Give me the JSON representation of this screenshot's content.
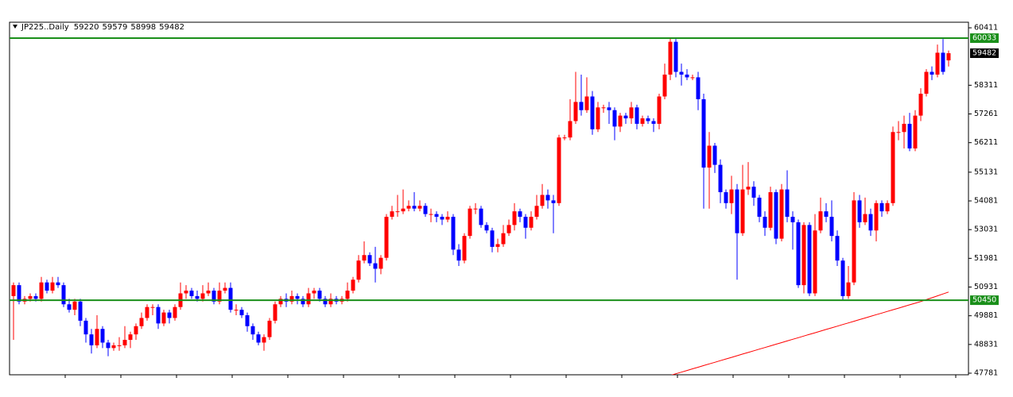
{
  "chart_data": {
    "type": "candlestick",
    "title": "JP225..Daily",
    "ylim": [
      47723,
      60615
    ],
    "yticks": [
      60411,
      58311,
      57261,
      56211,
      55131,
      54081,
      53031,
      51981,
      50931,
      49881,
      48831,
      47781
    ],
    "up_color": "#ff0000",
    "down_color": "#0000ff",
    "ohlc": [
      [
        50600,
        51100,
        49000,
        51000
      ],
      [
        51000,
        51100,
        50300,
        50400
      ],
      [
        50400,
        50600,
        50300,
        50500
      ],
      [
        50500,
        50700,
        50400,
        50600
      ],
      [
        50600,
        50700,
        50400,
        50500
      ],
      [
        50500,
        51300,
        50400,
        51100
      ],
      [
        51100,
        51200,
        50700,
        50800
      ],
      [
        50800,
        51300,
        50700,
        51100
      ],
      [
        51100,
        51300,
        50900,
        51000
      ],
      [
        51000,
        51100,
        50200,
        50300
      ],
      [
        50300,
        50500,
        50000,
        50100
      ],
      [
        50100,
        50500,
        49900,
        50400
      ],
      [
        50400,
        50500,
        49500,
        49700
      ],
      [
        49700,
        49800,
        48900,
        49200
      ],
      [
        49200,
        49400,
        48500,
        48800
      ],
      [
        48800,
        49900,
        48700,
        49400
      ],
      [
        49400,
        49500,
        48700,
        48900
      ],
      [
        48900,
        49000,
        48400,
        48700
      ],
      [
        48700,
        48900,
        48600,
        48800
      ],
      [
        48800,
        49100,
        48600,
        48800
      ],
      [
        48800,
        49500,
        48700,
        49000
      ],
      [
        49000,
        49300,
        48700,
        49200
      ],
      [
        49200,
        49600,
        49000,
        49500
      ],
      [
        49500,
        50000,
        49400,
        49800
      ],
      [
        49800,
        50300,
        49700,
        50200
      ],
      [
        50200,
        50300,
        49900,
        50200
      ],
      [
        50200,
        50300,
        49400,
        49600
      ],
      [
        49600,
        50100,
        49500,
        50000
      ],
      [
        50000,
        50100,
        49600,
        49800
      ],
      [
        49800,
        50300,
        49700,
        50200
      ],
      [
        50200,
        51100,
        50100,
        50700
      ],
      [
        50700,
        51000,
        50500,
        50800
      ],
      [
        50800,
        50900,
        50500,
        50600
      ],
      [
        50600,
        50800,
        50400,
        50500
      ],
      [
        50500,
        51000,
        50400,
        50700
      ],
      [
        50700,
        51100,
        50600,
        50800
      ],
      [
        50800,
        50900,
        50300,
        50400
      ],
      [
        50400,
        51100,
        50300,
        50800
      ],
      [
        50800,
        51100,
        50700,
        50900
      ],
      [
        50900,
        51100,
        50000,
        50100
      ],
      [
        50100,
        50300,
        49900,
        50100
      ],
      [
        50100,
        50200,
        49800,
        49900
      ],
      [
        49900,
        50000,
        49300,
        49500
      ],
      [
        49500,
        49600,
        49000,
        49200
      ],
      [
        49200,
        49300,
        48800,
        48900
      ],
      [
        48900,
        49200,
        48600,
        49100
      ],
      [
        49100,
        49800,
        49000,
        49700
      ],
      [
        49700,
        50400,
        49600,
        50300
      ],
      [
        50300,
        50600,
        50200,
        50500
      ],
      [
        50500,
        50700,
        50200,
        50400
      ],
      [
        50400,
        50800,
        50300,
        50600
      ],
      [
        50600,
        50700,
        50300,
        50500
      ],
      [
        50500,
        50600,
        50200,
        50300
      ],
      [
        50300,
        50900,
        50200,
        50700
      ],
      [
        50700,
        50900,
        50500,
        50800
      ],
      [
        50800,
        50900,
        50400,
        50500
      ],
      [
        50500,
        50600,
        50200,
        50300
      ],
      [
        50300,
        50700,
        50200,
        50500
      ],
      [
        50500,
        50600,
        50300,
        50400
      ],
      [
        50400,
        50600,
        50300,
        50500
      ],
      [
        50500,
        51100,
        50400,
        50800
      ],
      [
        50800,
        51300,
        50700,
        51200
      ],
      [
        51200,
        52100,
        51100,
        51900
      ],
      [
        51900,
        52600,
        51800,
        52100
      ],
      [
        52100,
        52200,
        51700,
        51800
      ],
      [
        51800,
        52400,
        51100,
        51600
      ],
      [
        51600,
        52100,
        51400,
        52000
      ],
      [
        52000,
        53600,
        51900,
        53500
      ],
      [
        53500,
        53900,
        53400,
        53700
      ],
      [
        53700,
        54300,
        53500,
        53700
      ],
      [
        53700,
        54500,
        53600,
        53800
      ],
      [
        53800,
        54100,
        53700,
        53900
      ],
      [
        53900,
        54400,
        53700,
        53800
      ],
      [
        53800,
        54100,
        53700,
        53900
      ],
      [
        53900,
        54000,
        53500,
        53600
      ],
      [
        53600,
        53800,
        53300,
        53600
      ],
      [
        53600,
        53700,
        53300,
        53500
      ],
      [
        53500,
        53600,
        53200,
        53400
      ],
      [
        53400,
        53700,
        53300,
        53500
      ],
      [
        53500,
        53600,
        52100,
        52300
      ],
      [
        52300,
        52500,
        51700,
        51900
      ],
      [
        51900,
        52900,
        51800,
        52800
      ],
      [
        52800,
        53900,
        52700,
        53800
      ],
      [
        53800,
        54000,
        53600,
        53800
      ],
      [
        53800,
        53900,
        53100,
        53200
      ],
      [
        53200,
        53300,
        52900,
        53000
      ],
      [
        53000,
        53100,
        52200,
        52400
      ],
      [
        52400,
        52700,
        52200,
        52500
      ],
      [
        52500,
        53200,
        52400,
        52900
      ],
      [
        52900,
        53400,
        52800,
        53200
      ],
      [
        53200,
        54000,
        53000,
        53700
      ],
      [
        53700,
        53800,
        53300,
        53500
      ],
      [
        53500,
        53600,
        52700,
        53100
      ],
      [
        53100,
        53700,
        53000,
        53500
      ],
      [
        53500,
        54300,
        53400,
        53900
      ],
      [
        53900,
        54700,
        53800,
        54300
      ],
      [
        54300,
        54500,
        53800,
        54100
      ],
      [
        54100,
        54300,
        52900,
        54000
      ],
      [
        54000,
        56500,
        53900,
        56400
      ],
      [
        56400,
        56500,
        56300,
        56400
      ],
      [
        56400,
        57800,
        56300,
        57000
      ],
      [
        57000,
        58800,
        56900,
        57700
      ],
      [
        57700,
        58700,
        57200,
        57400
      ],
      [
        57400,
        58600,
        57300,
        57900
      ],
      [
        57900,
        58100,
        56500,
        56700
      ],
      [
        56700,
        57700,
        56600,
        57500
      ],
      [
        57500,
        57600,
        57300,
        57500
      ],
      [
        57500,
        57700,
        56900,
        57400
      ],
      [
        57400,
        57500,
        56300,
        56800
      ],
      [
        56800,
        57300,
        56600,
        57200
      ],
      [
        57200,
        57300,
        56900,
        57100
      ],
      [
        57100,
        57700,
        56900,
        57500
      ],
      [
        57500,
        57600,
        56700,
        56900
      ],
      [
        56900,
        57200,
        56800,
        57100
      ],
      [
        57100,
        57200,
        56900,
        57000
      ],
      [
        57000,
        57100,
        56600,
        56900
      ],
      [
        56900,
        58000,
        56700,
        57900
      ],
      [
        57900,
        59100,
        57800,
        58700
      ],
      [
        58700,
        60033,
        58500,
        59900
      ],
      [
        59900,
        60000,
        58600,
        58800
      ],
      [
        58800,
        59100,
        58300,
        58700
      ],
      [
        58700,
        58900,
        58500,
        58600
      ],
      [
        58600,
        58700,
        58500,
        58600
      ],
      [
        58600,
        58800,
        57400,
        57800
      ],
      [
        57800,
        58000,
        53800,
        55300
      ],
      [
        55300,
        56600,
        53800,
        56100
      ],
      [
        56100,
        56200,
        55100,
        55400
      ],
      [
        55400,
        55600,
        54000,
        54400
      ],
      [
        54400,
        54500,
        53800,
        54000
      ],
      [
        54000,
        55000,
        53600,
        54500
      ],
      [
        54500,
        54700,
        51200,
        52900
      ],
      [
        52900,
        55400,
        52800,
        54500
      ],
      [
        54500,
        55500,
        54300,
        54600
      ],
      [
        54600,
        54800,
        53900,
        54200
      ],
      [
        54200,
        54300,
        53300,
        53500
      ],
      [
        53500,
        53700,
        52800,
        53100
      ],
      [
        53100,
        54600,
        53000,
        54400
      ],
      [
        54400,
        54500,
        52500,
        52700
      ],
      [
        52700,
        54700,
        52600,
        54500
      ],
      [
        54500,
        55200,
        53300,
        53500
      ],
      [
        53500,
        53700,
        52300,
        53300
      ],
      [
        53300,
        53400,
        50900,
        51000
      ],
      [
        51000,
        53300,
        50700,
        53200
      ],
      [
        53200,
        53300,
        50600,
        50700
      ],
      [
        50700,
        53600,
        50600,
        53000
      ],
      [
        53000,
        54200,
        52900,
        53700
      ],
      [
        53700,
        54000,
        53300,
        53500
      ],
      [
        53500,
        54100,
        52600,
        52800
      ],
      [
        52800,
        53000,
        51700,
        51900
      ],
      [
        51900,
        52000,
        50450,
        50600
      ],
      [
        50600,
        51700,
        50500,
        51100
      ],
      [
        51100,
        54400,
        51000,
        54100
      ],
      [
        54100,
        54300,
        53100,
        53300
      ],
      [
        53300,
        54200,
        53200,
        53600
      ],
      [
        53600,
        53800,
        52800,
        53000
      ],
      [
        53000,
        54100,
        52600,
        54000
      ],
      [
        54000,
        54100,
        53500,
        53700
      ],
      [
        53700,
        54100,
        53600,
        54000
      ],
      [
        54000,
        56800,
        53900,
        56600
      ],
      [
        56600,
        57000,
        56300,
        56600
      ],
      [
        56600,
        57200,
        56000,
        56900
      ],
      [
        56900,
        57300,
        55900,
        56000
      ],
      [
        56000,
        57400,
        55900,
        57200
      ],
      [
        57200,
        58200,
        57000,
        58000
      ],
      [
        58000,
        58900,
        57900,
        58800
      ],
      [
        58800,
        59000,
        58500,
        58700
      ],
      [
        58700,
        59800,
        58600,
        59500
      ],
      [
        59500,
        60000,
        58700,
        58800
      ],
      [
        59220,
        59579,
        58998,
        59482
      ]
    ],
    "ma": {
      "color": "#ff0000",
      "values": [
        null,
        null,
        null,
        null,
        null,
        null,
        null,
        null,
        null,
        null,
        null,
        null,
        null,
        null,
        null,
        null,
        null,
        null,
        null,
        null,
        null,
        null,
        null,
        null,
        null,
        null,
        null,
        null,
        null,
        null,
        null,
        null,
        null,
        null,
        null,
        null,
        null,
        null,
        null,
        null,
        null,
        null,
        null,
        null,
        null,
        null,
        null,
        null,
        null,
        null,
        null,
        null,
        null,
        null,
        null,
        null,
        null,
        null,
        null,
        null,
        null,
        null,
        null,
        null,
        null,
        null,
        null,
        null,
        null,
        null,
        null,
        null,
        null,
        null,
        null,
        null,
        null,
        null,
        null,
        null,
        null,
        null,
        null,
        null,
        null,
        null,
        null,
        null,
        null,
        null,
        null,
        null,
        null,
        null,
        null,
        null,
        null,
        null,
        null,
        null,
        null,
        null,
        null,
        null,
        null,
        null,
        null,
        null,
        null,
        null,
        null,
        null,
        null,
        null,
        null,
        null,
        null,
        null,
        47700,
        47760,
        47820,
        47880,
        47940,
        48000,
        48060,
        48120,
        48180,
        48240,
        48300,
        48360,
        48420,
        48480,
        48540,
        48600,
        48660,
        48720,
        48780,
        48840,
        48900,
        48960,
        49020,
        49080,
        49140,
        49200,
        49260,
        49320,
        49380,
        49440,
        49500,
        49560,
        49620,
        49680,
        49740,
        49800,
        49860,
        49920,
        49980,
        50040,
        50100,
        50160,
        50220,
        50280,
        50340,
        50400,
        50470,
        50540,
        50610,
        50680,
        50750
      ]
    },
    "hlines": [
      {
        "value": 60033,
        "color": "#1a8f1a"
      },
      {
        "value": 50450,
        "color": "#1a8f1a"
      }
    ],
    "grid": false
  }
}
